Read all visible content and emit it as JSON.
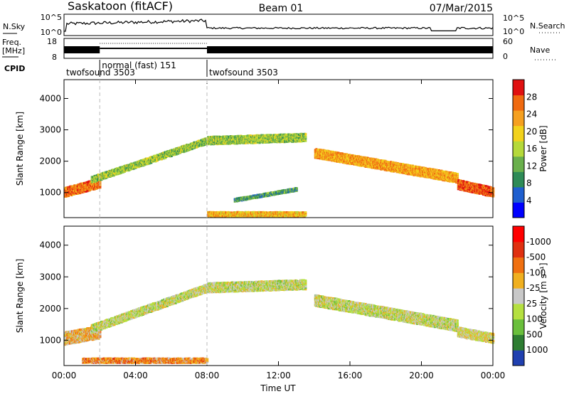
{
  "header": {
    "station": "Saskatoon (fitACF)",
    "beam": "Beam 01",
    "date": "07/Mar/2015"
  },
  "chart_data": [
    {
      "type": "line",
      "panel": "noise",
      "left_label": "N.Sky",
      "right_label": "N.Search",
      "left_ticks": [
        "10^5",
        "10^0"
      ],
      "right_ticks": [
        "10^5",
        "10^0"
      ],
      "scale": "log",
      "note": "N.Sky trace ~10^3 rising to ~10^4 01:00-08:00, ~10^2.5 afterwards"
    },
    {
      "type": "line",
      "panel": "freq",
      "left_label_lines": [
        "Freq.",
        "[MHz]"
      ],
      "right_label": "Nave",
      "left_ticks": [
        "18",
        "8"
      ],
      "right_ticks": [
        "60",
        "0"
      ],
      "cpid_label": "CPID",
      "modes": [
        {
          "label": "twofsound 3503",
          "start_h": 0,
          "end_h": 2
        },
        {
          "label": "normal (fast) 151",
          "start_h": 2,
          "end_h": 8
        },
        {
          "label": "twofsound 3503",
          "start_h": 8,
          "end_h": 24
        }
      ]
    },
    {
      "type": "heatmap",
      "panel": "power",
      "ylabel": "Slant Range [km]",
      "yticks": [
        "1000",
        "2000",
        "3000",
        "4000"
      ],
      "ylim": [
        200,
        4600
      ],
      "colorbar_label": "Power [dB]",
      "colorbar_ticks": [
        "4",
        "8",
        "12",
        "16",
        "20",
        "24",
        "28"
      ],
      "colorbar_colors": [
        "#0000ff",
        "#1f5fcf",
        "#2e8b57",
        "#6ab04c",
        "#b5d93a",
        "#f2d21c",
        "#f5a020",
        "#f06a10",
        "#e01010"
      ],
      "bands": [
        {
          "start": 0.0,
          "end": 2.0,
          "range_start": 1050,
          "range_end": 1350,
          "width": 300,
          "level": 0.85
        },
        {
          "start": 1.5,
          "end": 8.0,
          "range_start": 1450,
          "range_end": 2700,
          "width": 200,
          "level": 0.45
        },
        {
          "start": 8.0,
          "end": 13.5,
          "range_start": 2700,
          "range_end": 2800,
          "width": 250,
          "level": 0.45
        },
        {
          "start": 14.0,
          "end": 22.0,
          "range_start": 2300,
          "range_end": 1500,
          "width": 300,
          "level": 0.75
        },
        {
          "start": 22.0,
          "end": 24.0,
          "range_start": 1300,
          "range_end": 1050,
          "width": 300,
          "level": 0.9
        },
        {
          "start": 8.0,
          "end": 13.5,
          "range_start": 350,
          "range_end": 350,
          "width": 150,
          "level": 0.7
        },
        {
          "start": 9.5,
          "end": 13.0,
          "range_start": 800,
          "range_end": 1150,
          "width": 100,
          "level": 0.3
        }
      ]
    },
    {
      "type": "heatmap",
      "panel": "velocity",
      "ylabel": "Slant Range [km]",
      "yticks": [
        "1000",
        "2000",
        "3000",
        "4000"
      ],
      "ylim": [
        200,
        4600
      ],
      "xlabel": "Time UT",
      "xticks": [
        "00:00",
        "04:00",
        "08:00",
        "12:00",
        "16:00",
        "20:00",
        "00:00"
      ],
      "xlim": [
        0,
        24
      ],
      "colorbar_label": "Velocity [m s⁻¹]",
      "colorbar_ticks": [
        "1000",
        "500",
        "100",
        "25",
        "-25",
        "-100",
        "-500",
        "-1000"
      ],
      "colorbar_colors": [
        "#2040b0",
        "#2e7d32",
        "#6abf3c",
        "#b5e040",
        "#c8c8c8",
        "#f0b020",
        "#f07010",
        "#e03010",
        "#ff0000"
      ],
      "bands": [
        {
          "start": 0.0,
          "end": 2.0,
          "range_start": 1100,
          "range_end": 1300,
          "width": 400,
          "level": 0.6
        },
        {
          "start": 1.5,
          "end": 8.0,
          "range_start": 1400,
          "range_end": 2700,
          "width": 250,
          "level": 0.45
        },
        {
          "start": 8.0,
          "end": 13.5,
          "range_start": 2700,
          "range_end": 2800,
          "width": 300,
          "level": 0.45
        },
        {
          "start": 14.0,
          "end": 22.0,
          "range_start": 2300,
          "range_end": 1500,
          "width": 350,
          "level": 0.45
        },
        {
          "start": 22.0,
          "end": 24.0,
          "range_start": 1300,
          "range_end": 1100,
          "width": 300,
          "level": 0.5
        },
        {
          "start": 1.0,
          "end": 8.0,
          "range_start": 400,
          "range_end": 400,
          "width": 150,
          "level": 0.7
        }
      ]
    }
  ]
}
